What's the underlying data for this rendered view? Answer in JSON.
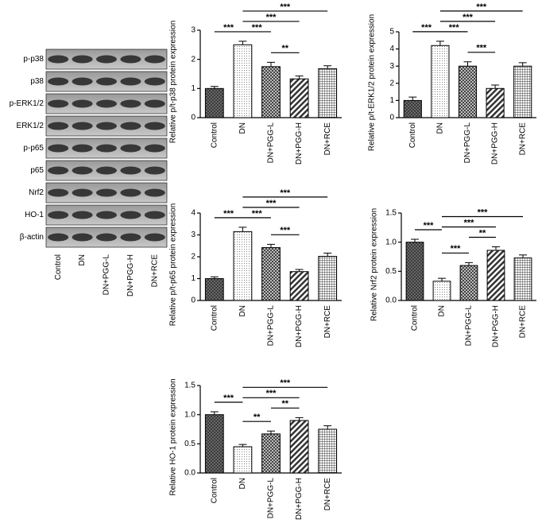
{
  "blot": {
    "rows": [
      "p-p38",
      "p38",
      "p-ERK1/2",
      "ERK1/2",
      "p-p65",
      "p65",
      "Nrf2",
      "HO-1",
      "β-actin"
    ],
    "lanes": [
      "Control",
      "DN",
      "DN+PGG-L",
      "DN+PGG-H",
      "DN+RCE"
    ]
  },
  "chart_data": [
    {
      "type": "bar",
      "ylabel": "Relative p/t-p38 protein expression",
      "categories": [
        "Control",
        "DN",
        "DN+PGG-L",
        "DN+PGG-H",
        "DN+RCE"
      ],
      "values": [
        1.0,
        2.5,
        1.75,
        1.33,
        1.68
      ],
      "errors": [
        0.07,
        0.12,
        0.15,
        0.1,
        0.1
      ],
      "ylim": [
        0,
        3
      ],
      "yticks": [
        0,
        1,
        2,
        3
      ],
      "comparisons": [
        {
          "pair": [
            1,
            4
          ],
          "label": "***"
        },
        {
          "pair": [
            1,
            3
          ],
          "label": "***"
        },
        {
          "pair": [
            0,
            1
          ],
          "label": "***"
        },
        {
          "pair": [
            1,
            2
          ],
          "label": "***"
        },
        {
          "pair": [
            2,
            3
          ],
          "label": "**"
        }
      ]
    },
    {
      "type": "bar",
      "ylabel": "Relative p/t-ERK1/2 protein expression",
      "categories": [
        "Control",
        "DN",
        "DN+PGG-L",
        "DN+PGG-H",
        "DN+RCE"
      ],
      "values": [
        1.0,
        4.2,
        3.0,
        1.7,
        3.0
      ],
      "errors": [
        0.2,
        0.25,
        0.25,
        0.2,
        0.2
      ],
      "ylim": [
        0,
        5
      ],
      "yticks": [
        0,
        1,
        2,
        3,
        4,
        5
      ],
      "comparisons": [
        {
          "pair": [
            1,
            4
          ],
          "label": "***"
        },
        {
          "pair": [
            1,
            3
          ],
          "label": "***"
        },
        {
          "pair": [
            0,
            1
          ],
          "label": "***"
        },
        {
          "pair": [
            1,
            2
          ],
          "label": "***"
        },
        {
          "pair": [
            2,
            3
          ],
          "label": "***"
        }
      ]
    },
    {
      "type": "bar",
      "ylabel": "Relative p/t-p65 protein expression",
      "categories": [
        "Control",
        "DN",
        "DN+PGG-L",
        "DN+PGG-H",
        "DN+RCE"
      ],
      "values": [
        1.0,
        3.15,
        2.42,
        1.32,
        2.02
      ],
      "errors": [
        0.08,
        0.2,
        0.15,
        0.1,
        0.15
      ],
      "ylim": [
        0,
        4
      ],
      "yticks": [
        0,
        1,
        2,
        3,
        4
      ],
      "comparisons": [
        {
          "pair": [
            1,
            4
          ],
          "label": "***"
        },
        {
          "pair": [
            1,
            3
          ],
          "label": "***"
        },
        {
          "pair": [
            0,
            1
          ],
          "label": "***"
        },
        {
          "pair": [
            1,
            2
          ],
          "label": "***"
        },
        {
          "pair": [
            2,
            3
          ],
          "label": "***"
        }
      ]
    },
    {
      "type": "bar",
      "ylabel": "Relative Nrf2 protein expression",
      "categories": [
        "Control",
        "DN",
        "DN+PGG-L",
        "DN+PGG-H",
        "DN+RCE"
      ],
      "values": [
        1.0,
        0.33,
        0.6,
        0.86,
        0.73
      ],
      "errors": [
        0.05,
        0.05,
        0.05,
        0.06,
        0.05
      ],
      "ylim": [
        0,
        1.5
      ],
      "yticks": [
        {
          "value": 0,
          "label": "0.0"
        },
        0.5,
        {
          "value": 1,
          "label": "1.0"
        },
        1.5
      ],
      "comparisons": [
        {
          "pair": [
            1,
            4
          ],
          "label": "***"
        },
        {
          "pair": [
            1,
            3
          ],
          "label": "***"
        },
        {
          "pair": [
            0,
            1
          ],
          "label": "***"
        },
        {
          "pair": [
            2,
            3
          ],
          "label": "**"
        },
        {
          "pair": [
            1,
            2
          ],
          "label": "***"
        }
      ]
    },
    {
      "type": "bar",
      "ylabel": "Relative HO-1 protein expression",
      "categories": [
        "Control",
        "DN",
        "DN+PGG-L",
        "DN+PGG-H",
        "DN+RCE"
      ],
      "values": [
        1.0,
        0.45,
        0.67,
        0.9,
        0.75
      ],
      "errors": [
        0.05,
        0.04,
        0.05,
        0.05,
        0.06
      ],
      "ylim": [
        0,
        1.5
      ],
      "yticks": [
        {
          "value": 0,
          "label": "0.0"
        },
        0.5,
        {
          "value": 1,
          "label": "1.0"
        },
        1.5
      ],
      "comparisons": [
        {
          "pair": [
            1,
            4
          ],
          "label": "***"
        },
        {
          "pair": [
            1,
            3
          ],
          "label": "***"
        },
        {
          "pair": [
            0,
            1
          ],
          "label": "***"
        },
        {
          "pair": [
            2,
            3
          ],
          "label": "**"
        },
        {
          "pair": [
            1,
            2
          ],
          "label": "**"
        }
      ]
    }
  ]
}
